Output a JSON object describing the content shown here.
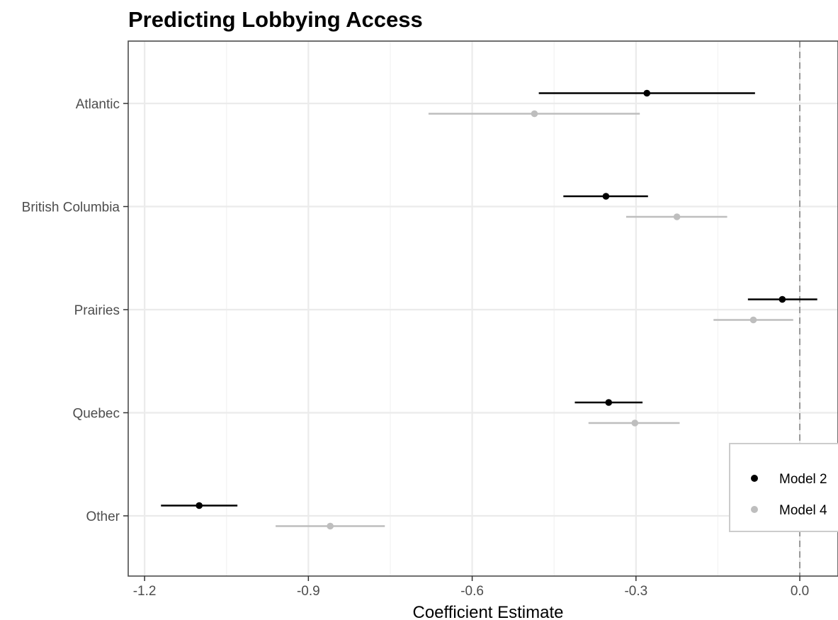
{
  "chart_data": {
    "type": "scatter",
    "subtype": "coefficient-plot",
    "title": "Predicting Lobbying Access",
    "xlabel": "Coefficient Estimate",
    "ylabel": "",
    "xlim": [
      -1.23,
      0.07
    ],
    "xticks": [
      -1.2,
      -0.9,
      -0.6,
      -0.3,
      0.0
    ],
    "xtick_labels": [
      "-1.2",
      "-0.9",
      "-0.6",
      "-0.3",
      "0.0"
    ],
    "categories": [
      "Atlantic",
      "British Columbia",
      "Prairies",
      "Quebec",
      "Other"
    ],
    "reference_line": 0.0,
    "grid": true,
    "legend_position": "right",
    "series": [
      {
        "name": "Model 2",
        "color": "#000000",
        "estimates": [
          -0.28,
          -0.355,
          -0.032,
          -0.35,
          -1.1
        ],
        "ci_low": [
          -0.478,
          -0.433,
          -0.095,
          -0.412,
          -1.17
        ],
        "ci_high": [
          -0.082,
          -0.278,
          0.032,
          -0.288,
          -1.03
        ]
      },
      {
        "name": "Model 4",
        "color": "#bebebe",
        "estimates": [
          -0.486,
          -0.225,
          -0.085,
          -0.302,
          -0.86
        ],
        "ci_low": [
          -0.68,
          -0.318,
          -0.158,
          -0.387,
          -0.96
        ],
        "ci_high": [
          -0.293,
          -0.133,
          -0.012,
          -0.22,
          -0.76
        ]
      }
    ]
  }
}
